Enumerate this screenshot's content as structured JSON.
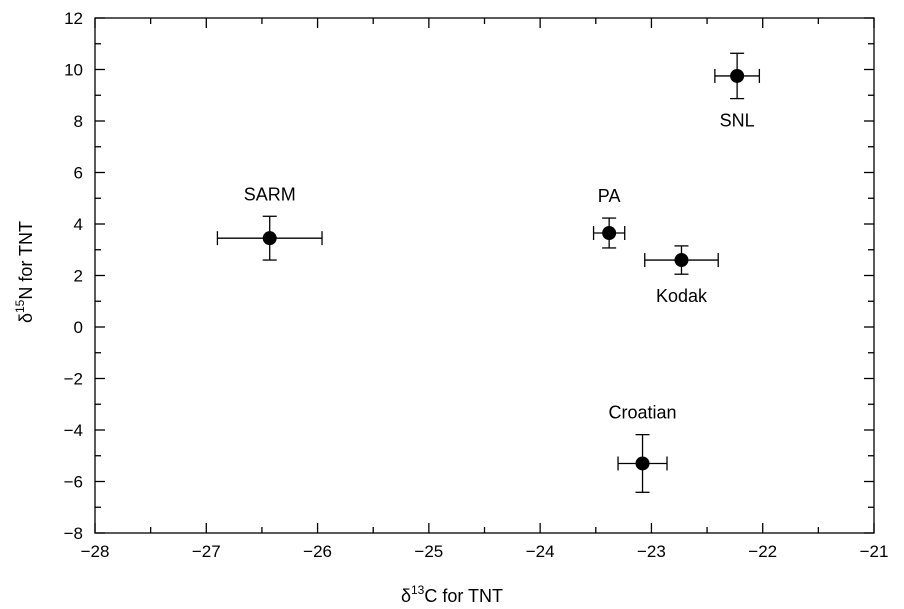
{
  "chart_data": {
    "type": "scatter",
    "xlabel": {
      "prefix": "δ",
      "sup": "13",
      "suffix": "C for TNT"
    },
    "ylabel": {
      "prefix": "δ",
      "sup": "15",
      "suffix": "N for TNT"
    },
    "xlim": [
      -28,
      -21
    ],
    "ylim": [
      -8,
      12
    ],
    "xticks": [
      -28,
      -27,
      -26,
      -25,
      -24,
      -23,
      -22,
      -21
    ],
    "yticks": [
      -8,
      -6,
      -4,
      -2,
      0,
      2,
      4,
      6,
      8,
      10,
      12
    ],
    "xtick_labels": [
      "−28",
      "−27",
      "−26",
      "−25",
      "−24",
      "−23",
      "−22",
      "−21"
    ],
    "ytick_labels": [
      "−8",
      "−6",
      "−4",
      "−2",
      "0",
      "2",
      "4",
      "6",
      "8",
      "10",
      "12"
    ],
    "x_minor_step": 0.5,
    "y_minor_step": 1,
    "grid": false,
    "points": [
      {
        "label": "SARM",
        "x": -26.43,
        "y": 3.45,
        "xerr": 0.47,
        "yerr": 0.85,
        "label_pos": "above"
      },
      {
        "label": "PA",
        "x": -23.38,
        "y": 3.65,
        "xerr": 0.14,
        "yerr": 0.58,
        "label_pos": "above"
      },
      {
        "label": "Kodak",
        "x": -22.73,
        "y": 2.6,
        "xerr": 0.33,
        "yerr": 0.55,
        "label_pos": "below"
      },
      {
        "label": "SNL",
        "x": -22.23,
        "y": 9.75,
        "xerr": 0.2,
        "yerr": 0.88,
        "label_pos": "below"
      },
      {
        "label": "Croatian",
        "x": -23.08,
        "y": -5.3,
        "xerr": 0.22,
        "yerr": 1.12,
        "label_pos": "above"
      }
    ]
  }
}
